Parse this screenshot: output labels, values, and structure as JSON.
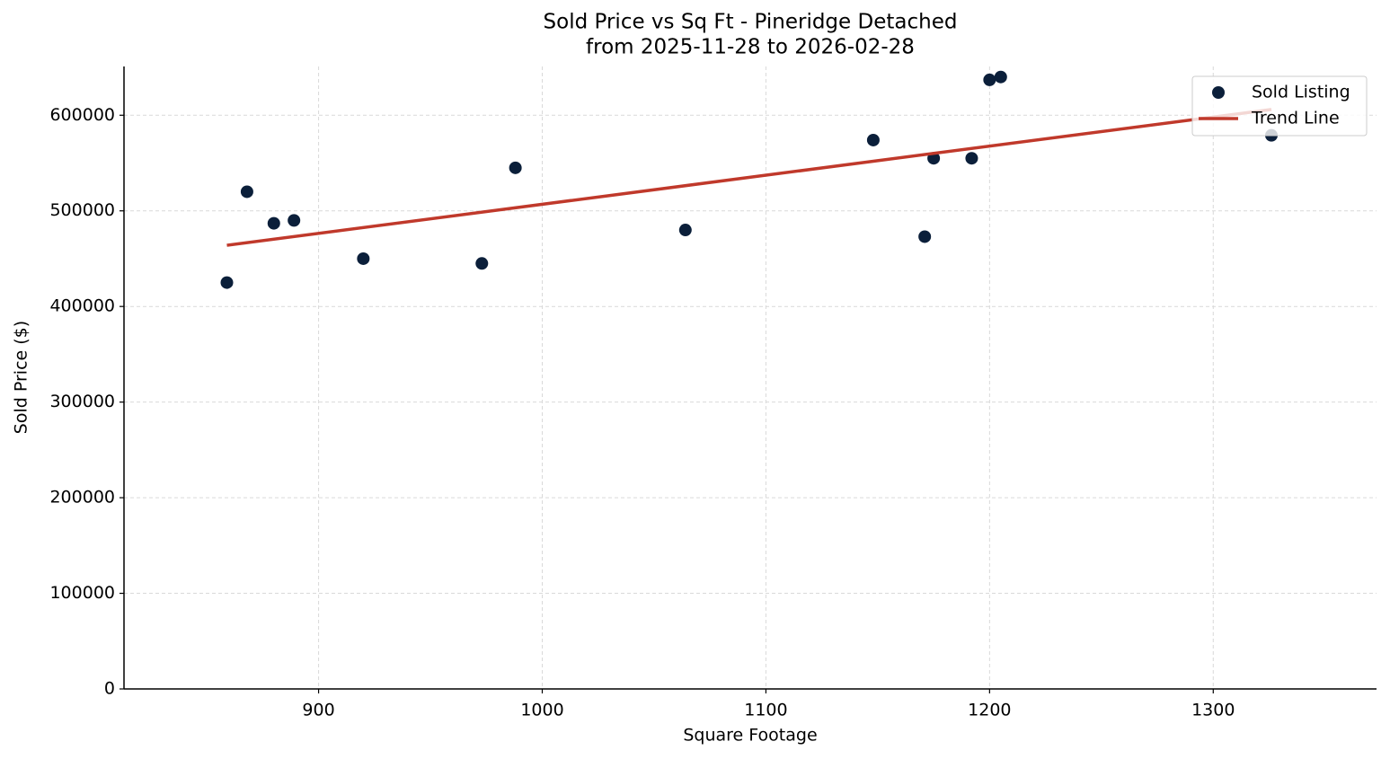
{
  "chart_data": {
    "type": "scatter",
    "title": "Sold Price vs Sq Ft - Pineridge Detached",
    "subtitle": "from 2025-11-28 to 2026-02-28",
    "x_label": "Square Footage",
    "y_label": "Sold Price ($)",
    "xlim": [
      813,
      1373
    ],
    "ylim": [
      0,
      651000
    ],
    "xticks": [
      900,
      1000,
      1100,
      1200,
      1300
    ],
    "yticks": [
      0,
      100000,
      200000,
      300000,
      400000,
      500000,
      600000
    ],
    "grid": true,
    "legend": "upper right",
    "series": [
      {
        "name": "Sold Listing",
        "color": "#0b1f3a",
        "type": "scatter",
        "x": [
          859,
          868,
          880,
          889,
          920,
          973,
          988,
          1064,
          1148,
          1171,
          1175,
          1192,
          1200,
          1205,
          1326
        ],
        "values": [
          425000,
          520000,
          487000,
          490000,
          450000,
          445000,
          545000,
          480000,
          574000,
          473000,
          555000,
          555000,
          637000,
          640000,
          579000
        ]
      },
      {
        "name": "Trend Line",
        "color": "#c0392b",
        "type": "line",
        "x": [
          859,
          1326
        ],
        "values": [
          464000,
          606000
        ]
      }
    ]
  }
}
